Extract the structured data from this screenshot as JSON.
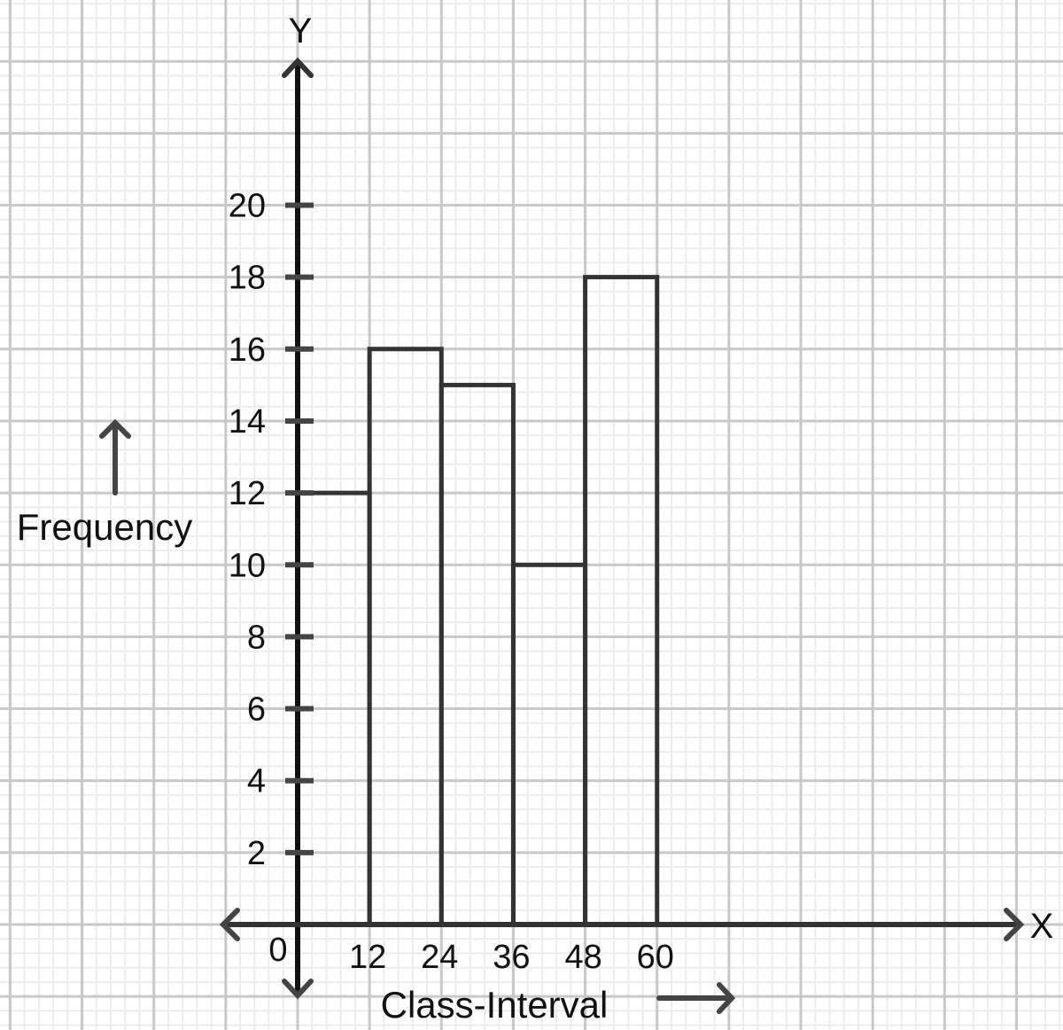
{
  "chart_data": {
    "type": "bar",
    "subtype": "histogram",
    "title": "",
    "xlabel": "Class-Interval",
    "ylabel": "Frequency",
    "x_axis_letter": "X",
    "y_axis_letter": "Y",
    "origin_label": "0",
    "bin_edges": [
      0,
      12,
      24,
      36,
      48,
      60
    ],
    "categories": [
      "0-12",
      "12-24",
      "24-36",
      "36-48",
      "48-60"
    ],
    "values": [
      12,
      16,
      15,
      10,
      18
    ],
    "x_ticks": [
      "12",
      "24",
      "36",
      "48",
      "60"
    ],
    "y_ticks": [
      "2",
      "4",
      "6",
      "8",
      "10",
      "12",
      "14",
      "16",
      "18",
      "20"
    ],
    "ylim": [
      0,
      20
    ],
    "xlim": [
      0,
      60
    ],
    "grid": true,
    "legend": null
  },
  "colors": {
    "axis": "#111111",
    "bar_outline": "#333333",
    "grid_major": "#c8c8c8",
    "grid_minor": "#ececec",
    "text": "#111111"
  }
}
